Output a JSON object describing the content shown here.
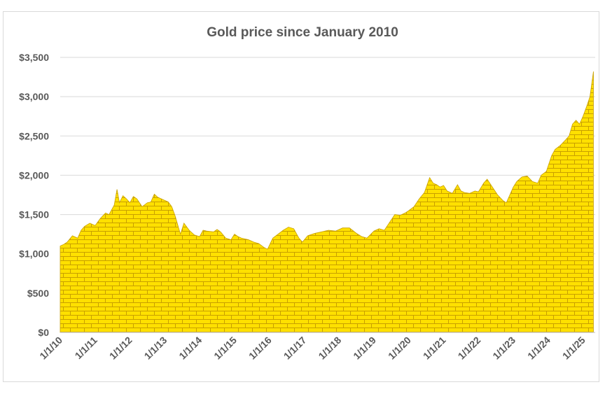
{
  "chart_data": {
    "type": "area",
    "title": "Gold price since January 2010",
    "xlabel": "",
    "ylabel": "",
    "ylim": [
      0,
      3500
    ],
    "yticks": [
      0,
      500,
      1000,
      1500,
      2000,
      2500,
      3000,
      3500
    ],
    "ytick_labels": [
      "$0",
      "$500",
      "$1,000",
      "$1,500",
      "$2,000",
      "$2,500",
      "$3,000",
      "$3,500"
    ],
    "xticks": [
      2010,
      2011,
      2012,
      2013,
      2014,
      2015,
      2016,
      2017,
      2018,
      2019,
      2020,
      2021,
      2022,
      2023,
      2024,
      2025
    ],
    "xtick_labels": [
      "1/1/10",
      "1/1/11",
      "1/1/12",
      "1/1/13",
      "1/1/14",
      "1/1/15",
      "1/1/16",
      "1/1/17",
      "1/1/18",
      "1/1/19",
      "1/1/20",
      "1/1/21",
      "1/1/22",
      "1/1/23",
      "1/1/24",
      "1/1/25"
    ],
    "xlim": [
      2010,
      2025.35
    ],
    "grid": true,
    "fill_color": "#ffe000",
    "brick_line_color": "#c8a000",
    "series": [
      {
        "x": [
          2010.0,
          2010.1,
          2010.2,
          2010.35,
          2010.5,
          2010.6,
          2010.7,
          2010.85,
          2011.0,
          2011.15,
          2011.3,
          2011.4,
          2011.55,
          2011.63,
          2011.7,
          2011.8,
          2011.9,
          2012.0,
          2012.1,
          2012.2,
          2012.35,
          2012.5,
          2012.6,
          2012.7,
          2012.8,
          2013.0,
          2013.1,
          2013.2,
          2013.3,
          2013.45,
          2013.55,
          2013.7,
          2013.85,
          2014.0,
          2014.1,
          2014.2,
          2014.4,
          2014.5,
          2014.6,
          2014.75,
          2014.9,
          2015.0,
          2015.1,
          2015.2,
          2015.4,
          2015.55,
          2015.7,
          2015.85,
          2015.95,
          2016.1,
          2016.25,
          2016.4,
          2016.55,
          2016.7,
          2016.85,
          2016.95,
          2017.1,
          2017.3,
          2017.5,
          2017.7,
          2017.9,
          2018.1,
          2018.3,
          2018.5,
          2018.65,
          2018.8,
          2019.0,
          2019.15,
          2019.3,
          2019.45,
          2019.6,
          2019.75,
          2019.9,
          2020.0,
          2020.15,
          2020.3,
          2020.45,
          2020.6,
          2020.7,
          2020.8,
          2020.9,
          2021.0,
          2021.1,
          2021.25,
          2021.4,
          2021.5,
          2021.6,
          2021.75,
          2021.9,
          2022.0,
          2022.15,
          2022.25,
          2022.4,
          2022.55,
          2022.7,
          2022.8,
          2022.9,
          2023.0,
          2023.1,
          2023.25,
          2023.4,
          2023.55,
          2023.7,
          2023.8,
          2023.95,
          2024.1,
          2024.2,
          2024.35,
          2024.5,
          2024.6,
          2024.7,
          2024.8,
          2024.9,
          2025.0,
          2025.1,
          2025.2,
          2025.3
        ],
        "values": [
          1100,
          1120,
          1150,
          1230,
          1200,
          1300,
          1350,
          1390,
          1360,
          1450,
          1520,
          1500,
          1620,
          1820,
          1650,
          1740,
          1700,
          1650,
          1730,
          1700,
          1600,
          1650,
          1660,
          1760,
          1720,
          1680,
          1660,
          1600,
          1480,
          1250,
          1390,
          1300,
          1240,
          1220,
          1300,
          1290,
          1280,
          1310,
          1280,
          1200,
          1180,
          1250,
          1220,
          1200,
          1180,
          1150,
          1130,
          1080,
          1060,
          1200,
          1250,
          1300,
          1340,
          1320,
          1200,
          1150,
          1230,
          1260,
          1280,
          1300,
          1290,
          1330,
          1330,
          1260,
          1220,
          1200,
          1290,
          1320,
          1300,
          1400,
          1500,
          1490,
          1520,
          1550,
          1600,
          1700,
          1780,
          1970,
          1900,
          1880,
          1850,
          1870,
          1800,
          1770,
          1880,
          1800,
          1780,
          1770,
          1800,
          1790,
          1900,
          1950,
          1850,
          1750,
          1680,
          1650,
          1750,
          1850,
          1920,
          1980,
          1990,
          1920,
          1900,
          2000,
          2050,
          2250,
          2330,
          2380,
          2450,
          2500,
          2650,
          2700,
          2650,
          2750,
          2870,
          3000,
          3320
        ]
      }
    ]
  }
}
